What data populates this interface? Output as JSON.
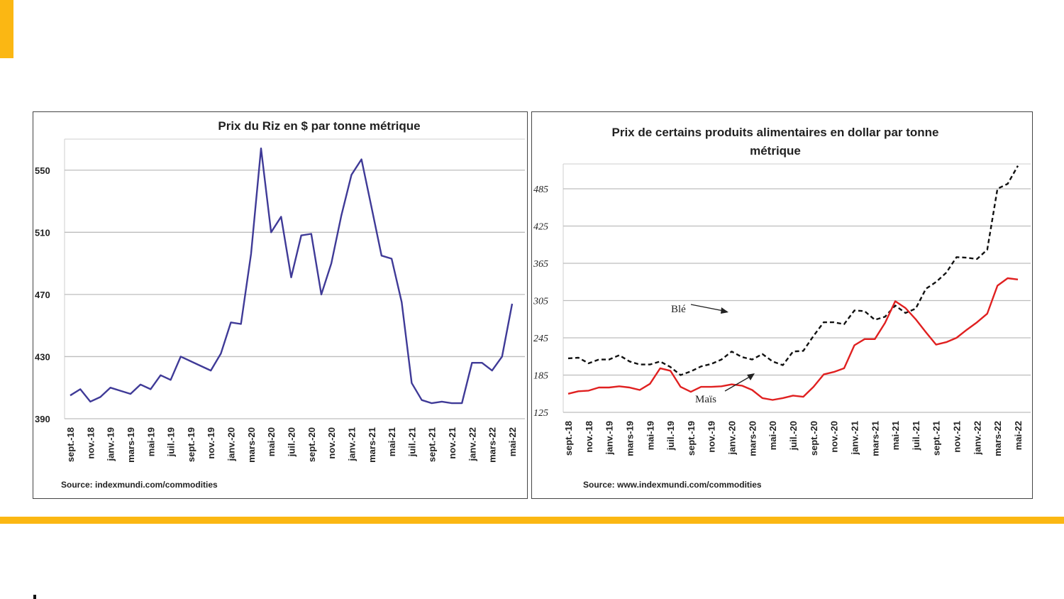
{
  "colors": {
    "accent": "#fbb713",
    "rice": "#3f3a97",
    "wheat": "#111111",
    "corn": "#e02020",
    "grid": "#bdbdbd"
  },
  "chart_data": [
    {
      "type": "line",
      "title": "Prix du Riz en $ par tonne métrique",
      "xlabel": "",
      "ylabel": "",
      "ylim": [
        390,
        570
      ],
      "yticks": [
        390,
        430,
        470,
        510,
        550
      ],
      "x": [
        "sept.-18",
        "oct.-18",
        "nov.-18",
        "déc.-18",
        "janv.-19",
        "févr.-19",
        "mars-19",
        "avr.-19",
        "mai-19",
        "juin-19",
        "juil.-19",
        "août-19",
        "sept.-19",
        "oct.-19",
        "nov.-19",
        "déc.-19",
        "janv.-20",
        "févr.-20",
        "mars-20",
        "avr.-20",
        "mai-20",
        "juin-20",
        "juil.-20",
        "août-20",
        "sept.-20",
        "oct.-20",
        "nov.-20",
        "déc.-20",
        "janv.-21",
        "févr.-21",
        "mars-21",
        "avr.-21",
        "mai-21",
        "juin-21",
        "juil.-21",
        "août-21",
        "sept.-21",
        "oct.-21",
        "nov.-21",
        "déc.-21",
        "janv.-22",
        "févr.-22",
        "mars-22",
        "avr.-22",
        "mai-22"
      ],
      "xticklabels": [
        "sept.-18",
        "nov.-18",
        "janv.-19",
        "mars-19",
        "mai-19",
        "juil.-19",
        "sept.-19",
        "nov.-19",
        "janv.-20",
        "mars-20",
        "mai-20",
        "juil.-20",
        "sept.-20",
        "nov.-20",
        "janv.-21",
        "mars-21",
        "mai-21",
        "juil.-21",
        "sept.-21",
        "nov.-21",
        "janv.-22",
        "mars-22",
        "mai-22"
      ],
      "grid": true,
      "legend": "none",
      "series": [
        {
          "values": [
            405,
            409,
            401,
            404,
            410,
            408,
            406,
            412,
            409,
            418,
            415,
            430,
            427,
            424,
            421,
            432,
            452,
            451,
            496,
            564,
            510,
            520,
            481,
            508,
            509,
            470,
            490,
            521,
            547,
            557,
            526,
            495,
            493,
            465,
            413,
            402,
            400,
            401,
            400,
            400,
            426,
            426,
            421,
            430,
            464
          ]
        }
      ],
      "source": "Source: indexmundi.com/commodities"
    },
    {
      "type": "line",
      "title": "Prix de certains produits alimentaires en dollar par tonne métrique",
      "title_lines": [
        "Prix de certains produits alimentaires en dollar par tonne",
        "métrique"
      ],
      "xlabel": "",
      "ylabel": "",
      "ylim": [
        125,
        525
      ],
      "yticks": [
        125,
        185,
        245,
        305,
        365,
        425,
        485
      ],
      "x": [
        "sept.-18",
        "oct.-18",
        "nov.-18",
        "déc.-18",
        "janv.-19",
        "févr.-19",
        "mars-19",
        "avr.-19",
        "mai-19",
        "juin-19",
        "juil.-19",
        "août-19",
        "sept.-19",
        "oct.-19",
        "nov.-19",
        "déc.-19",
        "janv.-20",
        "févr.-20",
        "mars-20",
        "avr.-20",
        "mai-20",
        "juin-20",
        "juil.-20",
        "août-20",
        "sept.-20",
        "oct.-20",
        "nov.-20",
        "déc.-20",
        "janv.-21",
        "févr.-21",
        "mars-21",
        "avr.-21",
        "mai-21",
        "juin-21",
        "juil.-21",
        "août-21",
        "sept.-21",
        "oct.-21",
        "nov.-21",
        "déc.-21",
        "janv.-22",
        "févr.-22",
        "mars-22",
        "avr.-22",
        "mai-22"
      ],
      "xticklabels": [
        "sept.-18",
        "nov.-18",
        "janv.-19",
        "mars-19",
        "mai-19",
        "juil.-19",
        "sept.-19",
        "nov.-19",
        "janv.-20",
        "mars-20",
        "mai-20",
        "juil.-20",
        "sept.-20",
        "nov.-20",
        "janv.-21",
        "mars-21",
        "mai-21",
        "juil.-21",
        "sept.-21",
        "nov.-21",
        "janv.-22",
        "mars-22",
        "mai-22"
      ],
      "grid": true,
      "legend": "annotations",
      "series": [
        {
          "name": "Blé",
          "style": "dashed",
          "values": [
            212,
            213,
            204,
            210,
            210,
            217,
            207,
            202,
            202,
            207,
            198,
            185,
            191,
            199,
            203,
            210,
            223,
            214,
            210,
            219,
            207,
            201,
            223,
            224,
            248,
            270,
            270,
            267,
            289,
            288,
            274,
            279,
            297,
            285,
            292,
            324,
            335,
            350,
            375,
            374,
            372,
            387,
            485,
            493,
            522
          ]
        },
        {
          "name": "Maïs",
          "style": "solid",
          "values": [
            155,
            159,
            160,
            165,
            165,
            167,
            165,
            161,
            171,
            196,
            192,
            166,
            158,
            166,
            166,
            167,
            170,
            168,
            161,
            148,
            145,
            148,
            152,
            150,
            166,
            186,
            190,
            196,
            233,
            243,
            243,
            269,
            304,
            293,
            275,
            254,
            234,
            238,
            245,
            258,
            270,
            284,
            329,
            341,
            339
          ]
        }
      ],
      "annotations": [
        {
          "text": "Blé",
          "target_series": "Blé"
        },
        {
          "text": "Maïs",
          "target_series": "Maïs"
        }
      ],
      "source": "Source: www.indexmundi.com/commodities"
    }
  ]
}
